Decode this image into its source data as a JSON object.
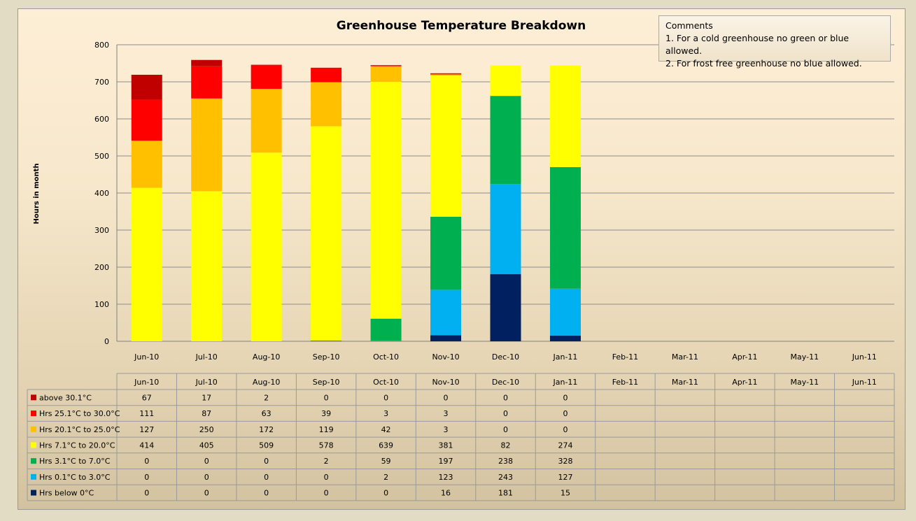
{
  "chart_data": {
    "type": "bar",
    "stacked": true,
    "title": "Greenhouse Temperature Breakdown",
    "ylabel": "Hours in month",
    "ylim": [
      0,
      800
    ],
    "yticks": [
      0,
      100,
      200,
      300,
      400,
      500,
      600,
      700,
      800
    ],
    "grid": true,
    "legend": "data-table",
    "categories": [
      "Jun-10",
      "Jul-10",
      "Aug-10",
      "Sep-10",
      "Oct-10",
      "Nov-10",
      "Dec-10",
      "Jan-11",
      "Feb-11",
      "Mar-11",
      "Apr-11",
      "May-11",
      "Jun-11"
    ],
    "series": [
      {
        "name": "Hrs below 0°C",
        "color": "#002060",
        "values": [
          0,
          0,
          0,
          0,
          0,
          16,
          181,
          15,
          null,
          null,
          null,
          null,
          null
        ]
      },
      {
        "name": "Hrs 0.1°C to 3.0°C",
        "color": "#00b0f0",
        "values": [
          0,
          0,
          0,
          0,
          2,
          123,
          243,
          127,
          null,
          null,
          null,
          null,
          null
        ]
      },
      {
        "name": "Hrs 3.1°C to 7.0°C",
        "color": "#00b050",
        "values": [
          0,
          0,
          0,
          2,
          59,
          197,
          238,
          328,
          null,
          null,
          null,
          null,
          null
        ]
      },
      {
        "name": "Hrs 7.1°C to 20.0°C",
        "color": "#ffff00",
        "values": [
          414,
          405,
          509,
          578,
          639,
          381,
          82,
          274,
          null,
          null,
          null,
          null,
          null
        ]
      },
      {
        "name": "Hrs 20.1°C to 25.0°C",
        "color": "#ffc000",
        "values": [
          127,
          250,
          172,
          119,
          42,
          3,
          0,
          0,
          null,
          null,
          null,
          null,
          null
        ]
      },
      {
        "name": "Hrs 25.1°C to 30.0°C",
        "color": "#ff0000",
        "values": [
          111,
          87,
          63,
          39,
          3,
          3,
          0,
          0,
          null,
          null,
          null,
          null,
          null
        ]
      },
      {
        "name": "above 30.1°C",
        "color": "#c00000",
        "values": [
          67,
          17,
          2,
          0,
          0,
          0,
          0,
          0,
          null,
          null,
          null,
          null,
          null
        ]
      }
    ],
    "table_row_order": [
      "above 30.1°C",
      "Hrs 25.1°C to 30.0°C",
      "Hrs 20.1°C to 25.0°C",
      "Hrs 7.1°C to 20.0°C",
      "Hrs 3.1°C to 7.0°C",
      "Hrs 0.1°C to 3.0°C",
      "Hrs below 0°C"
    ]
  },
  "comments": {
    "title": "Comments",
    "lines": [
      "1. For a cold greenhouse no green or blue allowed.",
      "2. For frost free greenhouse no blue allowed."
    ]
  }
}
